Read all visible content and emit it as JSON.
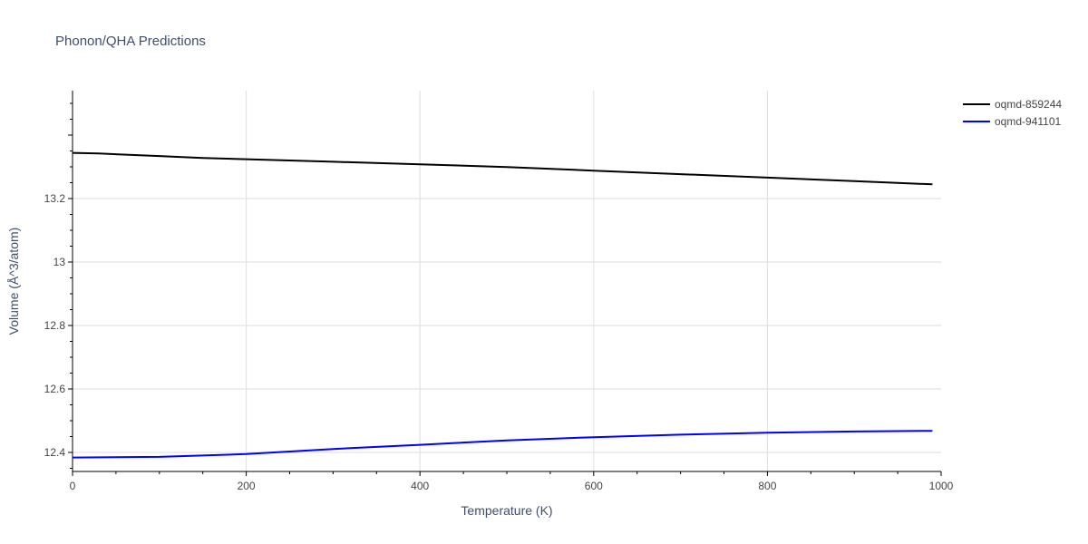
{
  "chart_data": {
    "type": "line",
    "title": "Phonon/QHA Predictions",
    "xlabel": "Temperature (K)",
    "ylabel": "Volume (Å^3/atom)",
    "xlim": [
      0,
      1000
    ],
    "ylim": [
      12.34,
      13.54
    ],
    "x_ticks": [
      0,
      200,
      400,
      600,
      800,
      1000
    ],
    "x_tick_labels": [
      "0",
      "200",
      "400",
      "600",
      "800",
      "1000"
    ],
    "y_ticks": [
      12.4,
      12.6,
      12.8,
      13.0,
      13.2
    ],
    "y_tick_labels": [
      "12.4",
      "12.6",
      "12.8",
      "13",
      "13.2"
    ],
    "grid": true,
    "legend_position": "top-right",
    "series": [
      {
        "name": "oqmd-859244",
        "color": "#000000",
        "x": [
          0,
          30,
          100,
          150,
          200,
          300,
          400,
          500,
          600,
          700,
          800,
          900,
          990
        ],
        "y": [
          13.344,
          13.342,
          13.334,
          13.328,
          13.324,
          13.316,
          13.308,
          13.299,
          13.288,
          13.277,
          13.266,
          13.255,
          13.245
        ]
      },
      {
        "name": "oqmd-941101",
        "color": "#0000ff",
        "x": [
          0,
          100,
          200,
          300,
          400,
          500,
          600,
          700,
          800,
          900,
          990
        ],
        "y": [
          12.384,
          12.386,
          12.395,
          12.411,
          12.424,
          12.438,
          12.448,
          12.456,
          12.462,
          12.466,
          12.468
        ]
      }
    ]
  }
}
